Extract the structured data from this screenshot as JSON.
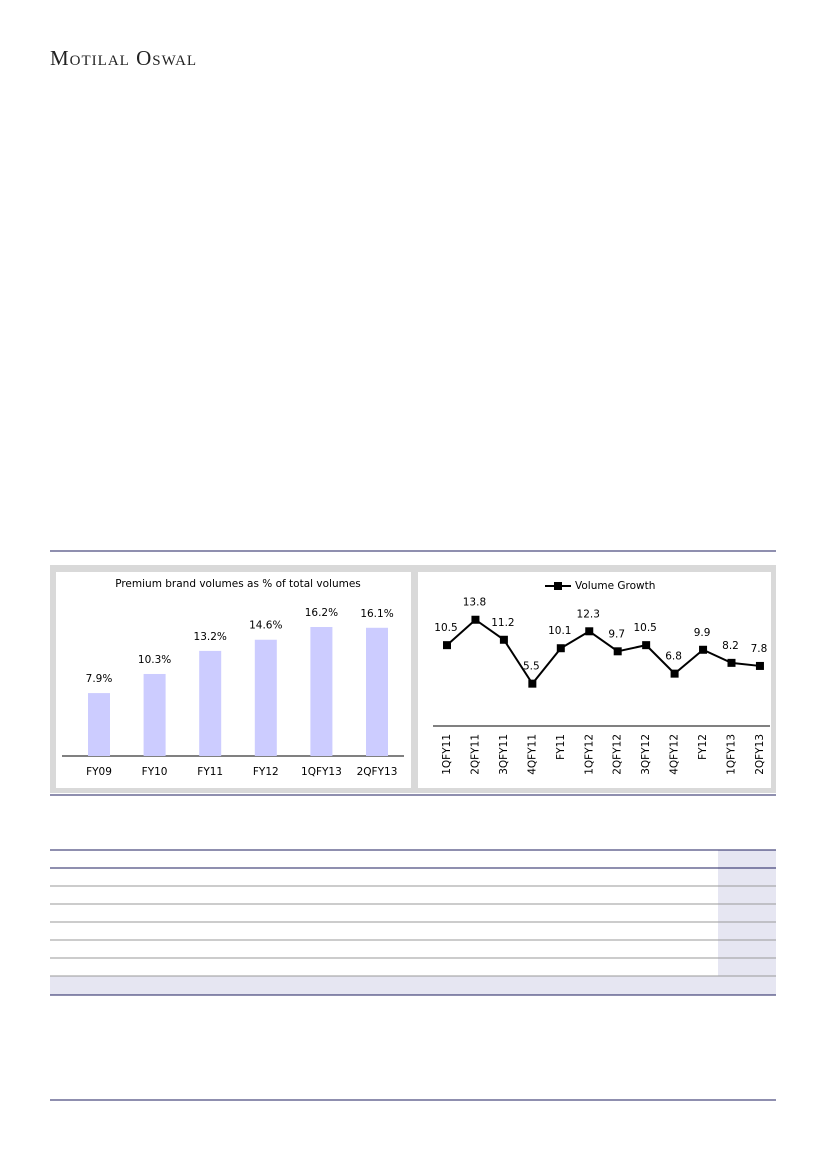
{
  "header": {
    "brand": "Motilal Oswal"
  },
  "chart_data": [
    {
      "type": "bar",
      "title": "Premium brand volumes as % of total volumes",
      "categories": [
        "FY09",
        "FY10",
        "FY11",
        "FY12",
        "1QFY13",
        "2QFY13"
      ],
      "values": [
        7.9,
        10.3,
        13.2,
        14.6,
        16.2,
        16.1
      ],
      "value_labels": [
        "7.9%",
        "10.3%",
        "13.2%",
        "14.6%",
        "16.2%",
        "16.1%"
      ],
      "color": "#ccccff"
    },
    {
      "type": "line",
      "categories": [
        "1QFY11",
        "2QFY11",
        "3QFY11",
        "4QFY11",
        "FY11",
        "1QFY12",
        "2QFY12",
        "3QFY12",
        "4QFY12",
        "FY12",
        "1QFY13",
        "2QFY13"
      ],
      "series": [
        {
          "name": "Volume Growth",
          "color": "#000000",
          "values": [
            10.5,
            13.8,
            11.2,
            5.5,
            10.1,
            12.3,
            9.7,
            10.5,
            6.8,
            9.9,
            8.2,
            7.8
          ]
        }
      ],
      "legend": "top"
    }
  ]
}
